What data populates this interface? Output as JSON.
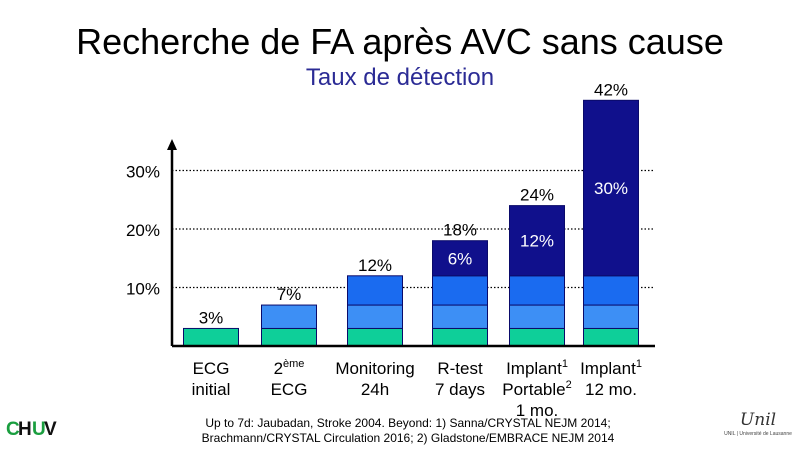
{
  "slide": {
    "title": "Recherche de FA après AVC sans cause",
    "subtitle": "Taux de détection"
  },
  "chart_data": {
    "type": "bar",
    "stacked": true,
    "ylim": [
      0,
      45
    ],
    "yticks": [
      {
        "value": 10,
        "label": "10%"
      },
      {
        "value": 20,
        "label": "20%"
      },
      {
        "value": 30,
        "label": "30%"
      }
    ],
    "grid": true,
    "categories": [
      {
        "lines": [
          {
            "text": "ECG"
          },
          {
            "text": "initial"
          }
        ]
      },
      {
        "lines": [
          {
            "text": "2",
            "sup": "ème"
          },
          {
            "text": "ECG"
          }
        ]
      },
      {
        "lines": [
          {
            "text": "Monitoring"
          },
          {
            "text": "24h"
          }
        ]
      },
      {
        "lines": [
          {
            "text": "R-test"
          },
          {
            "text": "7 days"
          }
        ]
      },
      {
        "lines": [
          {
            "text": "Implant",
            "sup": "1"
          },
          {
            "text": "Portable",
            "sup": "2"
          },
          {
            "text": "1 mo."
          }
        ]
      },
      {
        "lines": [
          {
            "text": "Implant",
            "sup": "1"
          },
          {
            "text": "12 mo."
          }
        ]
      }
    ],
    "segments": [
      [
        3
      ],
      [
        3,
        4
      ],
      [
        3,
        4,
        5
      ],
      [
        3,
        4,
        5,
        6
      ],
      [
        3,
        4,
        5,
        12
      ],
      [
        3,
        4,
        5,
        30
      ]
    ],
    "segment_colors": [
      "#0ecf99",
      "#3d8ff5",
      "#1a6bf0",
      "#10108c"
    ],
    "total_labels": [
      "3%",
      "7%",
      "12%",
      "18%",
      "24%",
      "42%"
    ],
    "segment_labels": [
      {
        "bar": 3,
        "label": "6%"
      },
      {
        "bar": 4,
        "label": "12%"
      },
      {
        "bar": 5,
        "label": "30%"
      }
    ]
  },
  "footnote": {
    "line1": "Up to 7d: Jaubadan, Stroke 2004. Beyond: 1) Sanna/CRYSTAL NEJM 2014;",
    "line2": "Brachmann/CRYSTAL Circulation 2016; 2) Gladstone/EMBRACE NEJM 2014"
  },
  "logos": {
    "chuv": "CHUV",
    "unil": "Unil",
    "unil_caption": "UNIL | Université de Lausanne"
  }
}
